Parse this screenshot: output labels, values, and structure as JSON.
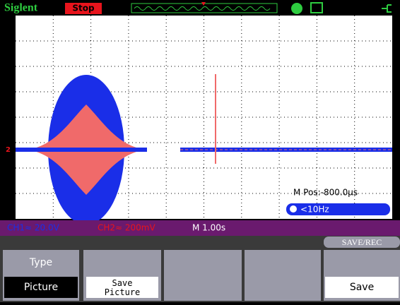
{
  "header": {
    "brand": "Siglent",
    "status": "Stop"
  },
  "screen": {
    "marker": "2",
    "m_pos": "M Pos:-800.0μs",
    "trigger": "<10Hz"
  },
  "status_bar": {
    "ch1": "CH1≈ 20.0V",
    "ch2": "CH2≈ 200mV",
    "timebase": "M 1.00s"
  },
  "menu": {
    "title": "SAVE/REC",
    "buttons": [
      {
        "label": "Type",
        "value": "Picture"
      },
      {
        "label": "Save Picture"
      },
      {
        "label": "Save"
      }
    ]
  }
}
